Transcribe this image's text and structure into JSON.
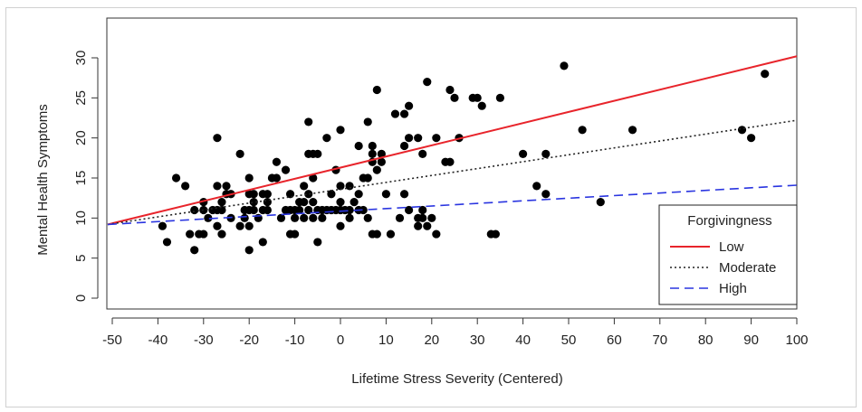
{
  "chart_data": {
    "type": "scatter",
    "xlabel": "Lifetime Stress Severity (Centered)",
    "ylabel": "Mental Health Symptoms",
    "xlim": [
      -50,
      100
    ],
    "ylim": [
      0,
      30
    ],
    "xticks": [
      -50,
      -40,
      -30,
      -20,
      -10,
      0,
      10,
      20,
      30,
      40,
      50,
      60,
      70,
      80,
      90,
      100
    ],
    "yticks": [
      0,
      5,
      10,
      15,
      20,
      25,
      30
    ],
    "grid": false,
    "legend": {
      "title": "Forgivingness",
      "placement": "bottom-right",
      "entries": [
        "Low",
        "Moderate",
        "High"
      ]
    },
    "points": [
      [
        -39,
        9
      ],
      [
        -38,
        7
      ],
      [
        -36,
        15
      ],
      [
        -34,
        14
      ],
      [
        -33,
        8
      ],
      [
        -32,
        11
      ],
      [
        -32,
        6
      ],
      [
        -31,
        8
      ],
      [
        -30,
        8
      ],
      [
        -30,
        11
      ],
      [
        -30,
        12
      ],
      [
        -29,
        10
      ],
      [
        -28,
        11
      ],
      [
        -27,
        9
      ],
      [
        -27,
        11
      ],
      [
        -27,
        14
      ],
      [
        -27,
        20
      ],
      [
        -26,
        11
      ],
      [
        -26,
        12
      ],
      [
        -26,
        8
      ],
      [
        -25,
        13
      ],
      [
        -25,
        14
      ],
      [
        -24,
        10
      ],
      [
        -24,
        13
      ],
      [
        -22,
        18
      ],
      [
        -22,
        9
      ],
      [
        -21,
        10
      ],
      [
        -21,
        11
      ],
      [
        -20,
        6
      ],
      [
        -20,
        9
      ],
      [
        -20,
        11
      ],
      [
        -20,
        13
      ],
      [
        -20,
        15
      ],
      [
        -19,
        12
      ],
      [
        -19,
        11
      ],
      [
        -19,
        13
      ],
      [
        -18,
        10
      ],
      [
        -17,
        7
      ],
      [
        -17,
        11
      ],
      [
        -17,
        13
      ],
      [
        -16,
        12
      ],
      [
        -16,
        11
      ],
      [
        -16,
        13
      ],
      [
        -15,
        15
      ],
      [
        -14,
        15
      ],
      [
        -14,
        17
      ],
      [
        -13,
        10
      ],
      [
        -12,
        11
      ],
      [
        -12,
        16
      ],
      [
        -11,
        8
      ],
      [
        -11,
        11
      ],
      [
        -11,
        13
      ],
      [
        -10,
        8
      ],
      [
        -10,
        10
      ],
      [
        -10,
        11
      ],
      [
        -9,
        12
      ],
      [
        -9,
        11
      ],
      [
        -8,
        14
      ],
      [
        -8,
        10
      ],
      [
        -8,
        12
      ],
      [
        -7,
        11
      ],
      [
        -7,
        13
      ],
      [
        -7,
        18
      ],
      [
        -7,
        22
      ],
      [
        -6,
        10
      ],
      [
        -6,
        12
      ],
      [
        -6,
        15
      ],
      [
        -6,
        18
      ],
      [
        -5,
        7
      ],
      [
        -5,
        11
      ],
      [
        -5,
        18
      ],
      [
        -4,
        10
      ],
      [
        -4,
        11
      ],
      [
        -3,
        11
      ],
      [
        -3,
        20
      ],
      [
        -2,
        11
      ],
      [
        -2,
        13
      ],
      [
        -1,
        16
      ],
      [
        -1,
        11
      ],
      [
        0,
        9
      ],
      [
        0,
        11
      ],
      [
        0,
        12
      ],
      [
        0,
        14
      ],
      [
        0,
        21
      ],
      [
        1,
        11
      ],
      [
        2,
        14
      ],
      [
        2,
        10
      ],
      [
        2,
        11
      ],
      [
        3,
        12
      ],
      [
        4,
        13
      ],
      [
        4,
        11
      ],
      [
        4,
        19
      ],
      [
        5,
        11
      ],
      [
        5,
        15
      ],
      [
        6,
        10
      ],
      [
        6,
        22
      ],
      [
        6,
        15
      ],
      [
        7,
        8
      ],
      [
        7,
        17
      ],
      [
        7,
        18
      ],
      [
        7,
        19
      ],
      [
        8,
        8
      ],
      [
        8,
        26
      ],
      [
        8,
        16
      ],
      [
        9,
        17
      ],
      [
        9,
        18
      ],
      [
        10,
        13
      ],
      [
        11,
        8
      ],
      [
        12,
        23
      ],
      [
        13,
        10
      ],
      [
        14,
        13
      ],
      [
        14,
        23
      ],
      [
        14,
        19
      ],
      [
        15,
        11
      ],
      [
        15,
        20
      ],
      [
        15,
        24
      ],
      [
        17,
        9
      ],
      [
        17,
        10
      ],
      [
        17,
        20
      ],
      [
        18,
        11
      ],
      [
        18,
        18
      ],
      [
        18,
        10
      ],
      [
        19,
        27
      ],
      [
        19,
        9
      ],
      [
        20,
        10
      ],
      [
        21,
        8
      ],
      [
        21,
        20
      ],
      [
        23,
        17
      ],
      [
        24,
        17
      ],
      [
        24,
        26
      ],
      [
        25,
        25
      ],
      [
        26,
        20
      ],
      [
        29,
        25
      ],
      [
        30,
        25
      ],
      [
        31,
        24
      ],
      [
        33,
        8
      ],
      [
        34,
        8
      ],
      [
        35,
        25
      ],
      [
        40,
        18
      ],
      [
        43,
        14
      ],
      [
        45,
        13
      ],
      [
        45,
        18
      ],
      [
        49,
        29
      ],
      [
        53,
        21
      ],
      [
        57,
        12
      ],
      [
        64,
        21
      ],
      [
        88,
        21
      ],
      [
        90,
        20
      ],
      [
        93,
        28
      ]
    ],
    "lines": [
      {
        "name": "Low",
        "color": "#e8242b",
        "style": "solid",
        "x": [
          -51,
          100
        ],
        "y": [
          9.2,
          30.2
        ]
      },
      {
        "name": "Moderate",
        "color": "#222222",
        "style": "dotted",
        "x": [
          -51,
          100
        ],
        "y": [
          9.2,
          22.2
        ]
      },
      {
        "name": "High",
        "color": "#2a35e0",
        "style": "dashed",
        "x": [
          -51,
          100
        ],
        "y": [
          9.2,
          14.1
        ]
      }
    ]
  }
}
